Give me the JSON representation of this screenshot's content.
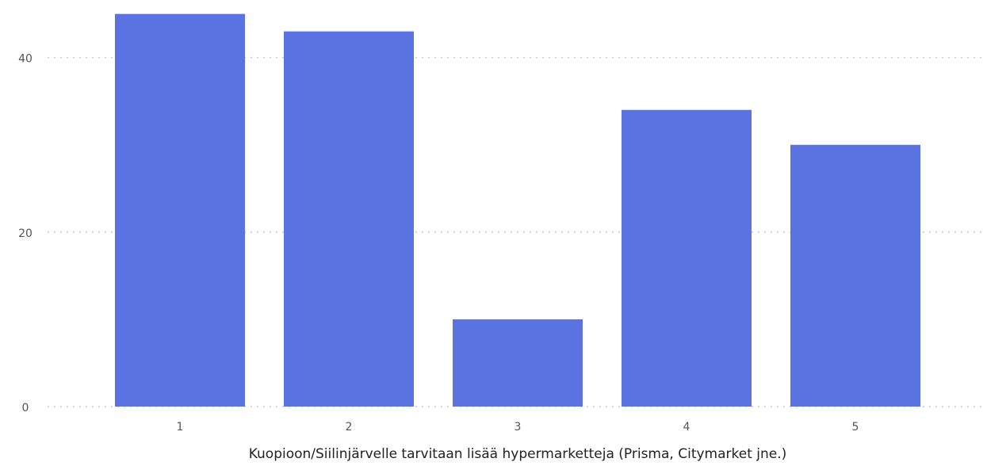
{
  "chart_data": {
    "type": "bar",
    "x_label": "Kuopioon/Siilinjärvelle tarvitaan lisää hypermarketteja (Prisma, Citymarket jne.)",
    "categories": [
      "1",
      "2",
      "3",
      "4",
      "5"
    ],
    "values": [
      45,
      43,
      10,
      34,
      30
    ],
    "color": "#5b73e1",
    "ylim": [
      0,
      46.6
    ],
    "yticks": [
      0,
      20,
      40
    ],
    "grid": true
  }
}
